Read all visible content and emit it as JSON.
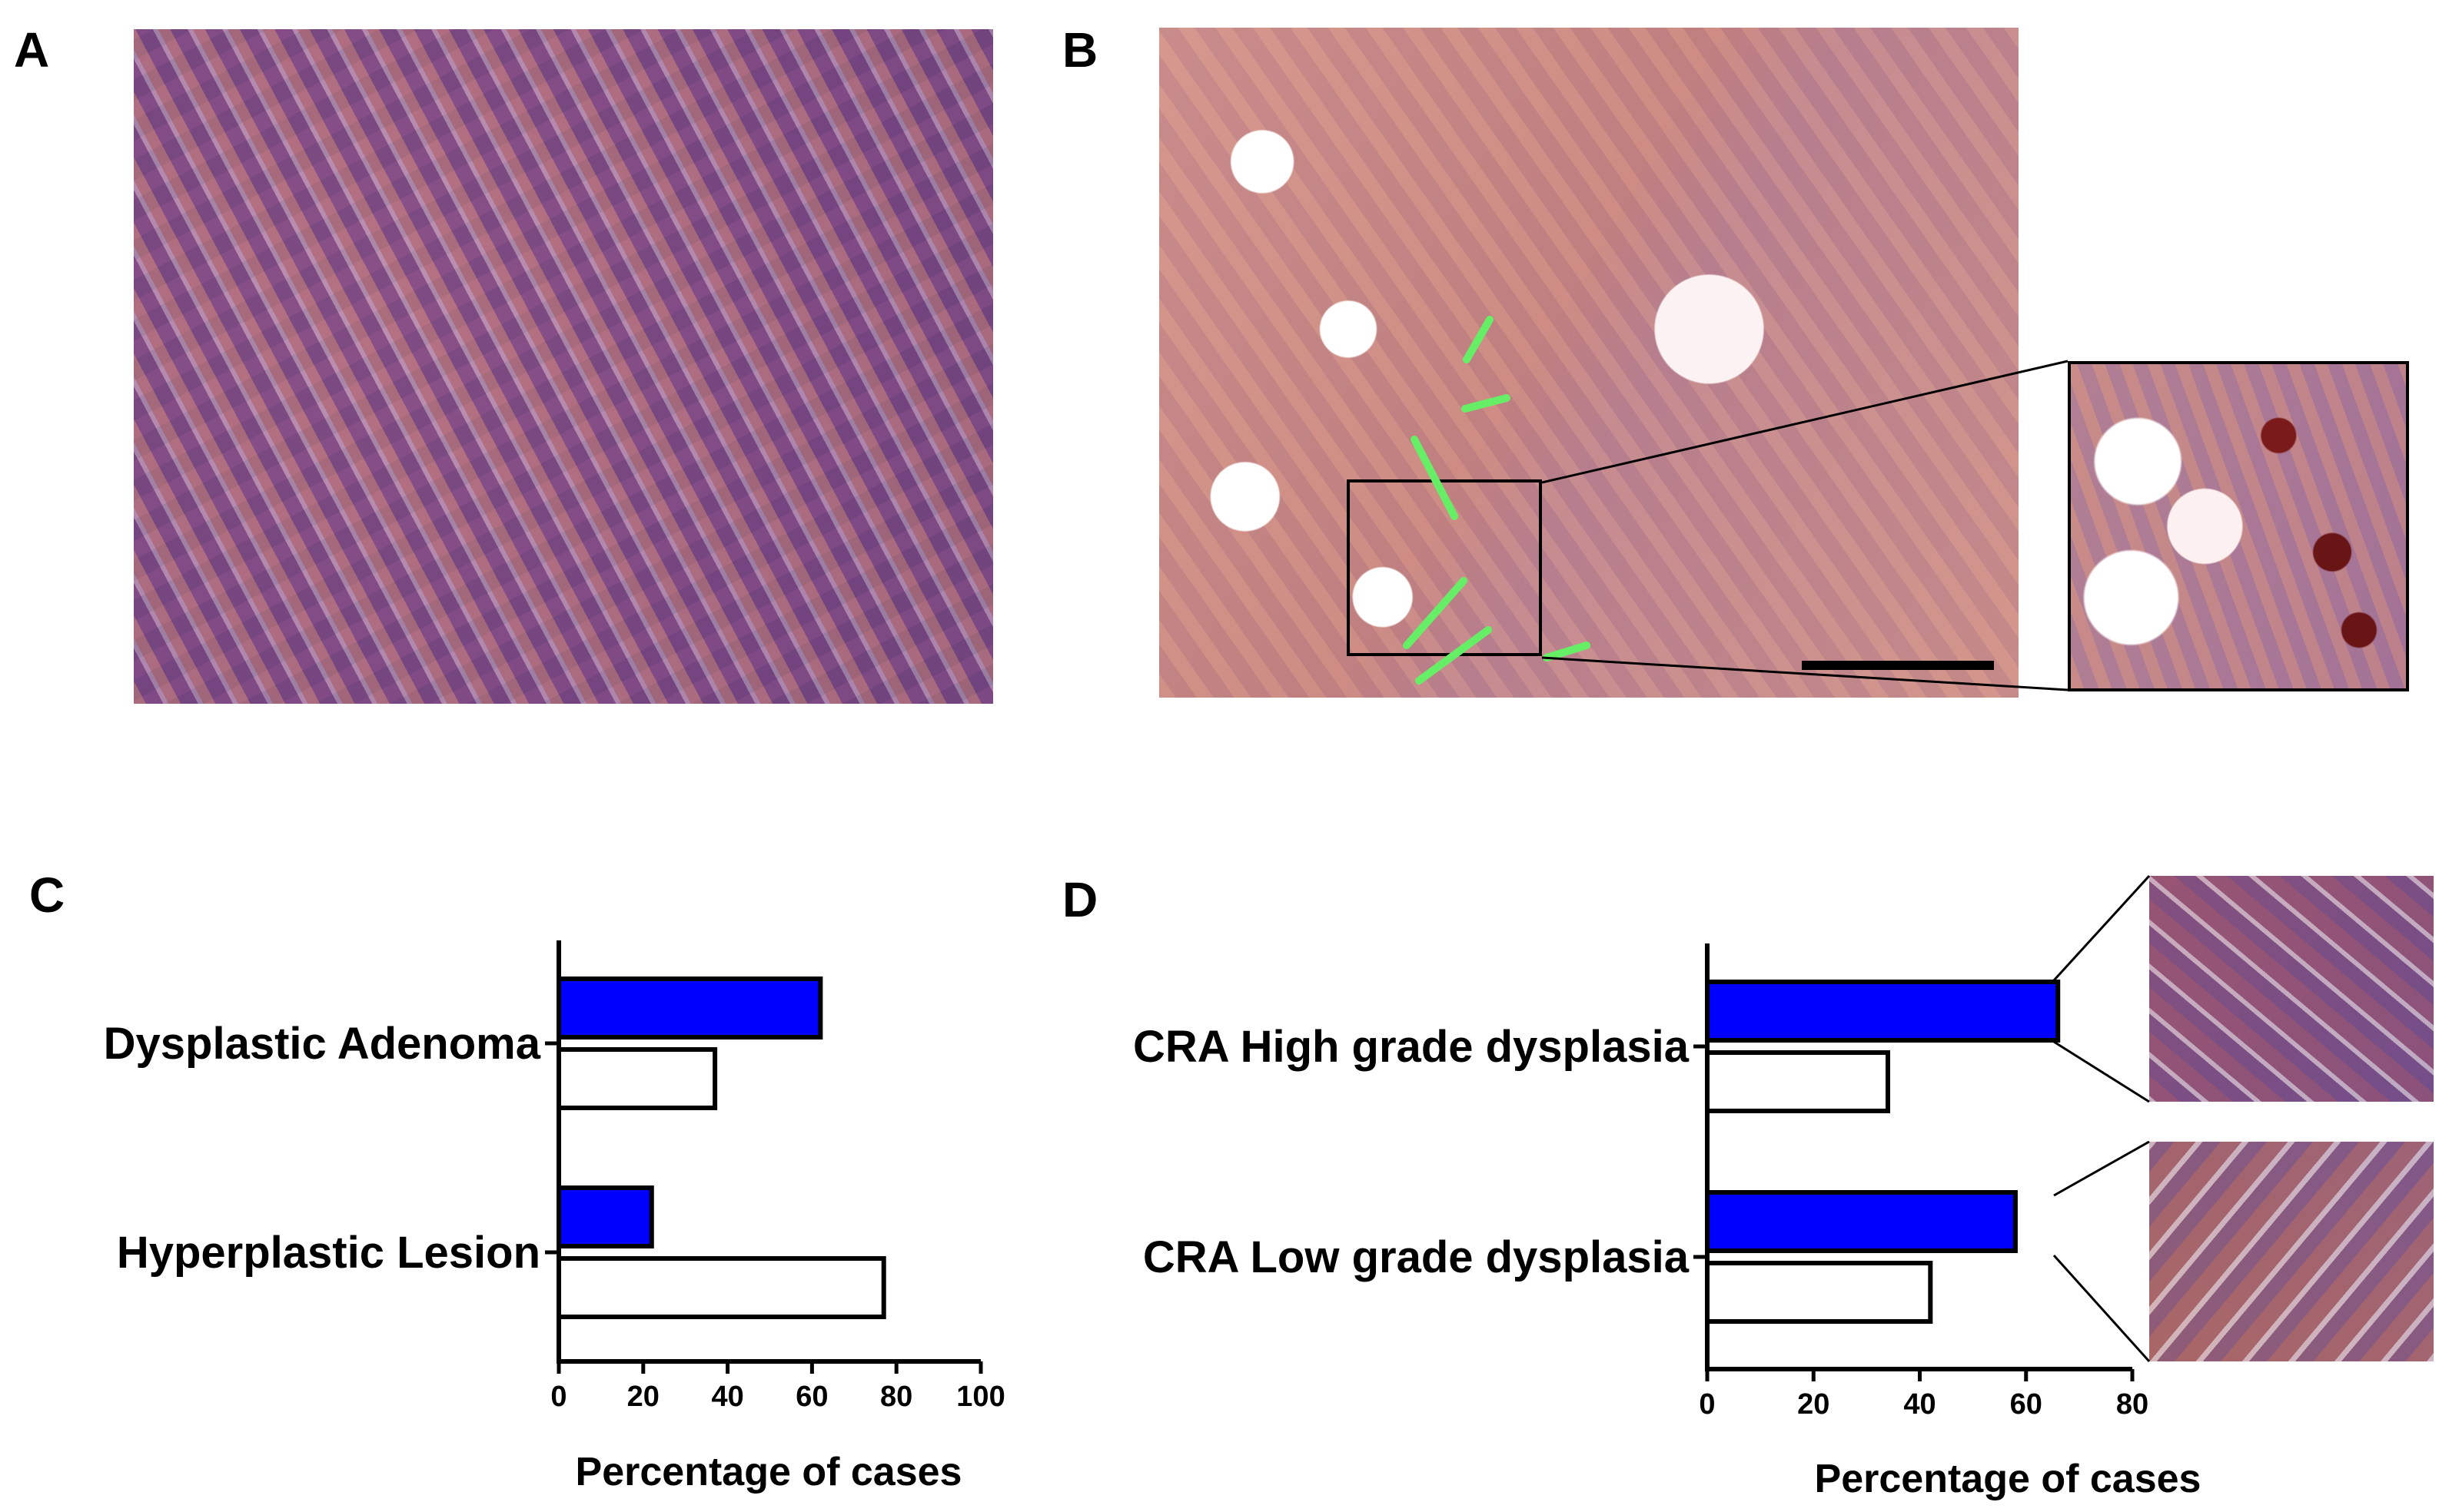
{
  "panels": {
    "a": {
      "letter": "A"
    },
    "b": {
      "letter": "B"
    },
    "c": {
      "letter": "C"
    },
    "d": {
      "letter": "D"
    }
  },
  "colors": {
    "positive": "#0000ff",
    "negative": "#ffffff",
    "arrows": "#66ee66"
  },
  "chart_data": [
    {
      "type": "bar",
      "orientation": "horizontal",
      "categories": [
        "Dysplastic Adenoma",
        "Hyperplastic Lesion"
      ],
      "series": [
        {
          "color": "#0000ff",
          "values": [
            62,
            22
          ]
        },
        {
          "color": "#ffffff",
          "values": [
            37,
            77
          ]
        }
      ],
      "xlabel": "Percentage of cases",
      "xlim": [
        0,
        100
      ],
      "xticks": [
        "0",
        "20",
        "40",
        "60",
        "80",
        "100"
      ],
      "grid": false,
      "legend": "none"
    },
    {
      "type": "bar",
      "orientation": "horizontal",
      "categories": [
        "CRA High grade dysplasia",
        "CRA Low grade dysplasia"
      ],
      "series": [
        {
          "color": "#0000ff",
          "values": [
            66,
            58
          ]
        },
        {
          "color": "#ffffff",
          "values": [
            34,
            42
          ]
        }
      ],
      "xlabel": "Percentage of cases",
      "xlim": [
        0,
        80
      ],
      "xticks": [
        "0",
        "20",
        "40",
        "60",
        "80"
      ],
      "grid": false,
      "legend": "none"
    }
  ]
}
